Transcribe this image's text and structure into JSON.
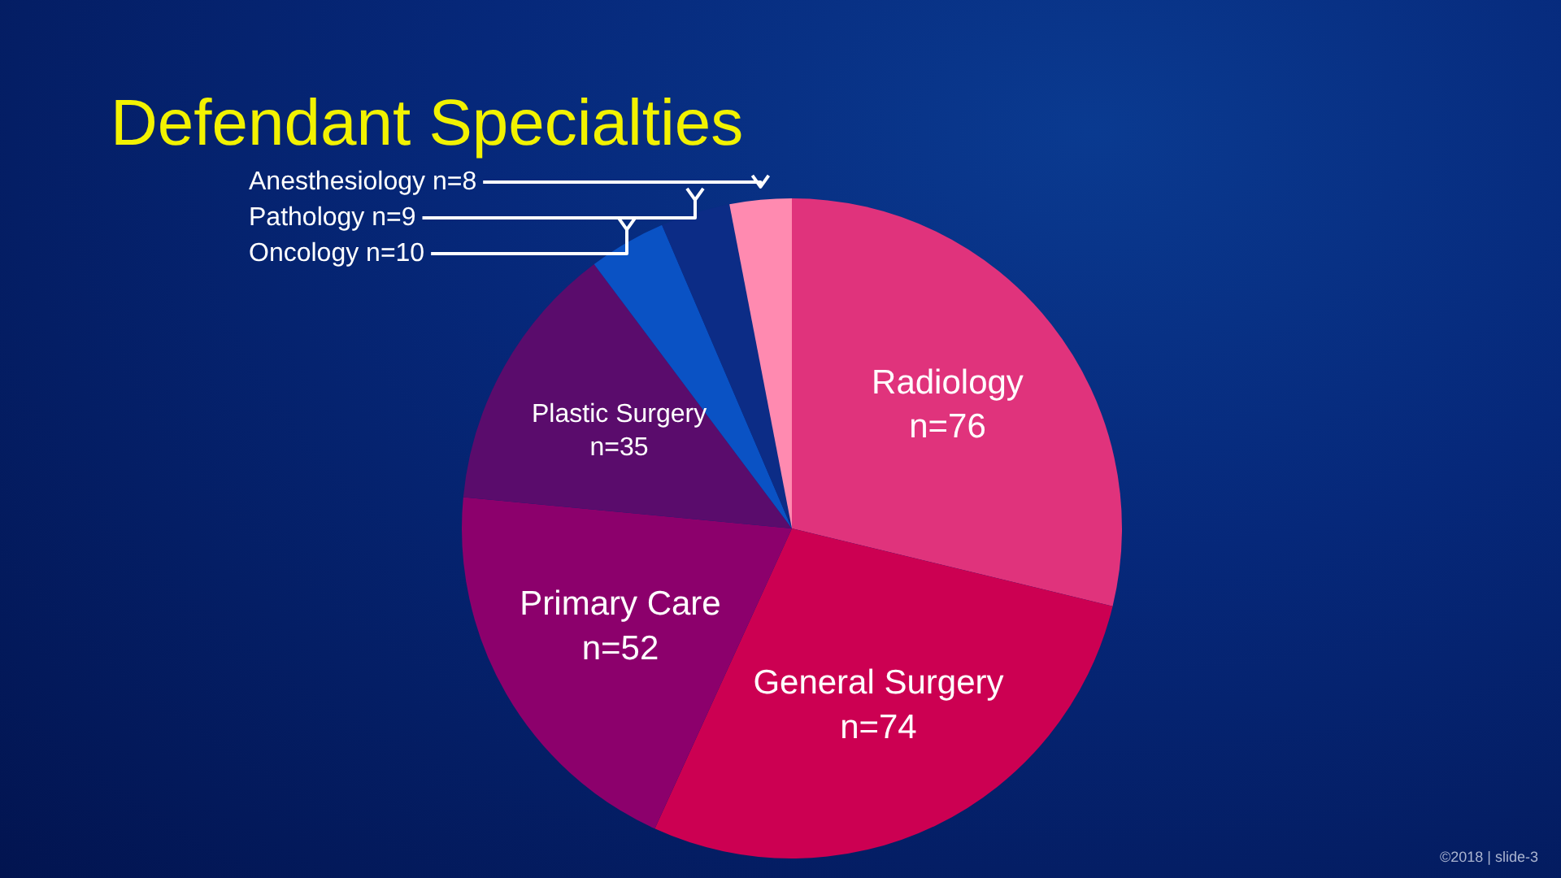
{
  "chart_data": {
    "type": "pie",
    "title": "Defendant Specialties",
    "categories": [
      "Radiology",
      "General Surgery",
      "Primary Care",
      "Plastic Surgery",
      "Oncology",
      "Pathology",
      "Anesthesiology"
    ],
    "values": [
      76,
      74,
      52,
      35,
      10,
      9,
      8
    ],
    "value_labels": [
      "n=76",
      "n=74",
      "n=52",
      "n=35",
      "n=10",
      "n=9",
      "n=8"
    ],
    "colors": [
      "#e0337c",
      "#cc0052",
      "#8c006c",
      "#5a0c6c",
      "#0a52c4",
      "#0c2c86",
      "#ff8ab0"
    ],
    "annotations": [
      "©2018 | slide-3"
    ]
  }
}
